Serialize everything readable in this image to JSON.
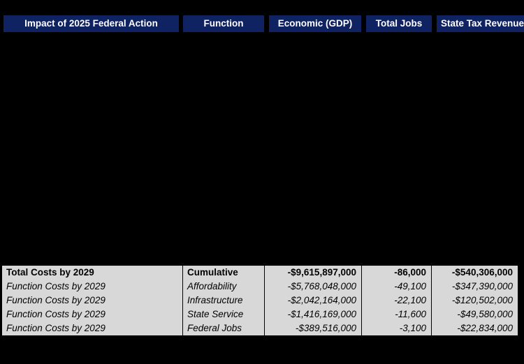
{
  "colors": {
    "canvas_bg": "#000000",
    "header_bg": "#0f2261",
    "header_text": "#ffffff",
    "table_bg": "#d8d8d8",
    "border": "#000000",
    "table_text": "#000000"
  },
  "chart_data": {
    "type": "table",
    "title": "Impact of 2025 Federal Action",
    "columns": [
      "Impact of 2025 Federal Action",
      "Function",
      "Economic (GDP)",
      "Total Jobs",
      "State Tax Revenue"
    ],
    "rows": [
      [
        "Total Costs by 2029",
        "Cumulative",
        "-$9,615,897,000",
        "-86,000",
        "-$540,306,000"
      ],
      [
        "Function Costs by 2029",
        "Affordability",
        "-$5,768,048,000",
        "-49,100",
        "-$347,390,000"
      ],
      [
        "Function Costs by 2029",
        "Infrastructure",
        "-$2,042,164,000",
        "-22,100",
        "-$120,502,000"
      ],
      [
        "Function Costs by 2029",
        "State Service",
        "-$1,416,169,000",
        "-11,600",
        "-$49,580,000"
      ],
      [
        "Function Costs by 2029",
        "Federal Jobs",
        "-$389,516,000",
        "-3,100",
        "-$22,834,000"
      ]
    ],
    "row_emphasis": [
      "bold",
      "italic",
      "italic",
      "italic",
      "italic"
    ],
    "categories": [
      "Cumulative",
      "Affordability",
      "Infrastructure",
      "State Service",
      "Federal Jobs"
    ],
    "series": [
      {
        "name": "Economic (GDP)",
        "values": [
          -9615897000,
          -5768048000,
          -2042164000,
          -1416169000,
          -389516000
        ]
      },
      {
        "name": "Total Jobs",
        "values": [
          -86000,
          -49100,
          -22100,
          -11600,
          -3100
        ]
      },
      {
        "name": "State Tax Revenue",
        "values": [
          -540306000,
          -347390000,
          -120502000,
          -49580000,
          -22834000
        ]
      }
    ],
    "notes": "First data row is cumulative totals in bold; remaining rows are per-function costs in italics. Middle region of image is blank (black) chart area. Last header cell text is clipped at right image edge."
  }
}
